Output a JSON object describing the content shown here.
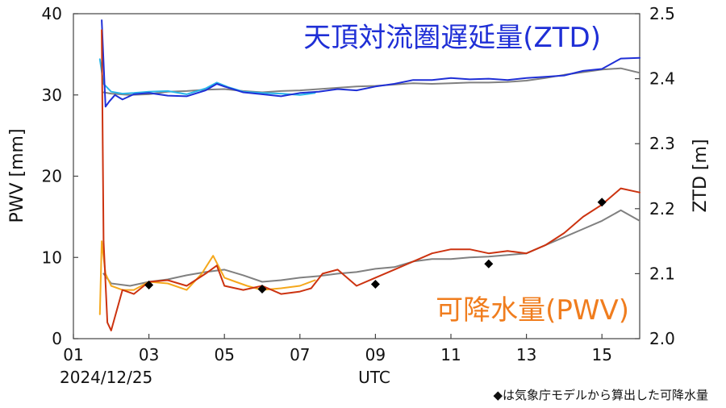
{
  "chart_data": {
    "type": "line",
    "xlabel": "UTC",
    "date_label": "2024/12/25",
    "ylabel_left": "PWV [mm]",
    "ylabel_right": "ZTD [m]",
    "x_range": [
      1,
      16
    ],
    "ylim_left": [
      0,
      40
    ],
    "ylim_right": [
      2.0,
      2.5
    ],
    "x_ticks": [
      "01",
      "03",
      "05",
      "07",
      "09",
      "11",
      "13",
      "15"
    ],
    "y_ticks_left": [
      "0",
      "10",
      "20",
      "30",
      "40"
    ],
    "y_ticks_right": [
      "2.0",
      "2.1",
      "2.2",
      "2.3",
      "2.4",
      "2.5"
    ],
    "grid": false,
    "annotations": {
      "ztd": "天頂対流圏遅延量(ZTD)",
      "pwv": "可降水量(PWV)",
      "marker_note": "◆は気象庁モデルから算出した可降水量"
    },
    "colors": {
      "ztd_primary": "#1f2fd6",
      "ztd_secondary": "#29b6e8",
      "pwv_primary": "#cc3310",
      "pwv_secondary": "#f5a81c",
      "reference": "#808080",
      "marker": "#000000"
    },
    "series": [
      {
        "id": "ztd-reference",
        "axis": "right",
        "color": "#808080",
        "x": [
          1.8,
          2.0,
          2.5,
          3.0,
          3.5,
          4.0,
          4.5,
          5.0,
          5.5,
          6.0,
          6.5,
          7.0,
          7.5,
          8.0,
          8.5,
          9.0,
          9.5,
          10.0,
          10.5,
          11.0,
          11.5,
          12.0,
          12.5,
          13.0,
          13.5,
          14.0,
          14.5,
          15.0,
          15.5,
          16.0
        ],
        "y": [
          2.379,
          2.377,
          2.375,
          2.376,
          2.38,
          2.381,
          2.383,
          2.384,
          2.381,
          2.379,
          2.381,
          2.382,
          2.384,
          2.386,
          2.388,
          2.389,
          2.391,
          2.393,
          2.392,
          2.393,
          2.394,
          2.394,
          2.395,
          2.397,
          2.401,
          2.406,
          2.41,
          2.414,
          2.416,
          2.409
        ]
      },
      {
        "id": "ztd-secondary",
        "axis": "right",
        "color": "#29b6e8",
        "x": [
          1.7,
          1.8,
          2.0,
          2.3,
          2.6,
          3.0,
          3.5,
          4.0,
          4.5,
          4.8,
          5.1,
          5.5,
          6.0,
          6.5,
          7.0,
          7.4
        ],
        "y": [
          2.43,
          2.392,
          2.38,
          2.377,
          2.378,
          2.38,
          2.381,
          2.376,
          2.385,
          2.394,
          2.387,
          2.38,
          2.378,
          2.377,
          2.375,
          2.378
        ]
      },
      {
        "id": "ztd-primary",
        "axis": "right",
        "color": "#1f2fd6",
        "x": [
          1.75,
          1.85,
          1.95,
          2.1,
          2.3,
          2.6,
          3.0,
          3.5,
          4.0,
          4.5,
          4.8,
          5.0,
          5.5,
          6.0,
          6.5,
          7.0,
          7.5,
          8.0,
          8.5,
          9.0,
          9.5,
          10.0,
          10.5,
          11.0,
          11.5,
          12.0,
          12.5,
          13.0,
          13.5,
          14.0,
          14.5,
          15.0,
          15.5,
          16.0
        ],
        "y": [
          2.49,
          2.357,
          2.365,
          2.375,
          2.368,
          2.376,
          2.378,
          2.374,
          2.373,
          2.382,
          2.392,
          2.388,
          2.379,
          2.376,
          2.373,
          2.378,
          2.38,
          2.384,
          2.382,
          2.388,
          2.392,
          2.398,
          2.398,
          2.401,
          2.399,
          2.4,
          2.398,
          2.401,
          2.403,
          2.405,
          2.412,
          2.415,
          2.431,
          2.432
        ]
      },
      {
        "id": "pwv-reference",
        "axis": "left",
        "color": "#808080",
        "x": [
          1.8,
          2.0,
          2.5,
          3.0,
          3.5,
          4.0,
          4.5,
          5.0,
          5.5,
          6.0,
          6.5,
          7.0,
          7.5,
          8.0,
          8.5,
          9.0,
          9.5,
          10.0,
          10.5,
          11.0,
          11.5,
          12.0,
          12.5,
          13.0,
          13.5,
          14.0,
          14.5,
          15.0,
          15.5,
          16.0
        ],
        "y": [
          8.0,
          6.8,
          6.5,
          7.0,
          7.3,
          7.8,
          8.2,
          8.5,
          7.8,
          7.0,
          7.2,
          7.5,
          7.7,
          8.0,
          8.2,
          8.6,
          8.8,
          9.5,
          9.8,
          9.8,
          10.0,
          10.1,
          10.3,
          10.5,
          11.5,
          12.5,
          13.5,
          14.5,
          15.8,
          14.5
        ]
      },
      {
        "id": "pwv-secondary",
        "axis": "left",
        "color": "#f5a81c",
        "x": [
          1.7,
          1.75,
          1.85,
          2.0,
          2.3,
          2.6,
          3.0,
          3.5,
          4.0,
          4.4,
          4.7,
          5.0,
          5.3,
          5.6,
          6.0,
          6.5,
          7.0,
          7.4
        ],
        "y": [
          3.0,
          12.0,
          8.0,
          6.5,
          6.0,
          6.0,
          7.0,
          6.8,
          6.0,
          8.0,
          10.2,
          7.5,
          7.0,
          6.5,
          6.0,
          6.2,
          6.5,
          7.2
        ]
      },
      {
        "id": "pwv-primary",
        "axis": "left",
        "color": "#cc3310",
        "x": [
          1.75,
          1.8,
          1.9,
          2.0,
          2.3,
          2.6,
          3.0,
          3.5,
          4.0,
          4.5,
          4.8,
          5.0,
          5.5,
          6.0,
          6.5,
          7.0,
          7.3,
          7.6,
          8.0,
          8.5,
          9.0,
          9.5,
          10.0,
          10.5,
          11.0,
          11.5,
          12.0,
          12.5,
          13.0,
          13.5,
          14.0,
          14.5,
          15.0,
          15.5,
          16.0
        ],
        "y": [
          38.0,
          12.0,
          2.0,
          1.0,
          6.0,
          5.5,
          7.0,
          7.2,
          6.5,
          8.0,
          9.0,
          6.5,
          6.0,
          6.5,
          5.5,
          5.8,
          6.2,
          8.0,
          8.5,
          6.5,
          7.5,
          8.5,
          9.5,
          10.5,
          11.0,
          11.0,
          10.5,
          10.8,
          10.5,
          11.5,
          13.0,
          15.0,
          16.5,
          18.5,
          18.0
        ]
      }
    ],
    "jma_model_points": {
      "marker": "diamond",
      "axis": "left",
      "color": "#000000",
      "x": [
        3,
        6,
        9,
        12,
        15
      ],
      "y": [
        6.6,
        6.1,
        6.7,
        9.2,
        16.8
      ]
    }
  }
}
